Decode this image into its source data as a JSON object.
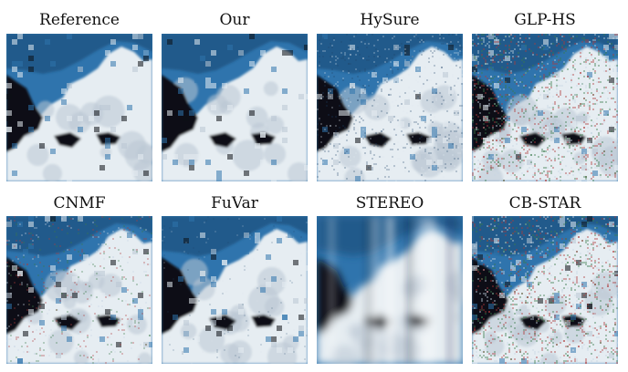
{
  "figure": {
    "panels": [
      {
        "label": "Reference",
        "style": "clean"
      },
      {
        "label": "Our",
        "style": "clean"
      },
      {
        "label": "HySure",
        "style": "noisy-light"
      },
      {
        "label": "GLP-HS",
        "style": "noisy-heavy"
      },
      {
        "label": "CNMF",
        "style": "noisy-color"
      },
      {
        "label": "FuVar",
        "style": "clean-light"
      },
      {
        "label": "STEREO",
        "style": "blurred"
      },
      {
        "label": "CB-STAR",
        "style": "noisy-heavy"
      }
    ],
    "colors": {
      "sky": "#2f74ad",
      "sky_dark": "#1d4f7c",
      "cloud": "#e6edf2",
      "cloud_shadow": "#b9c7d3",
      "dark": "#0c1116"
    }
  }
}
